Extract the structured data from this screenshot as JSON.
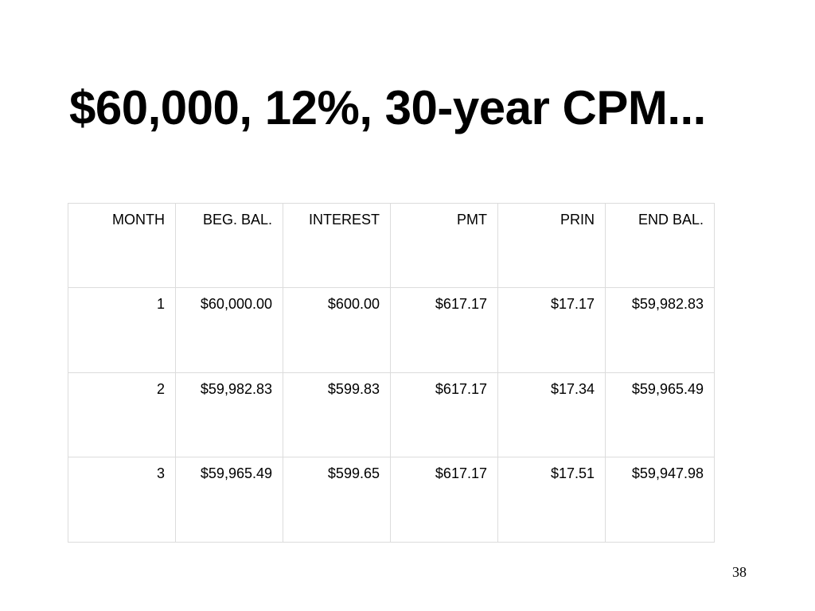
{
  "slide": {
    "title": "$60,000, 12%, 30-year CPM...",
    "page_number": "38"
  },
  "table": {
    "headers": [
      "MONTH",
      "BEG. BAL.",
      "INTEREST",
      "PMT",
      "PRIN",
      "END BAL."
    ],
    "rows": [
      [
        "1",
        "$60,000.00",
        "$600.00",
        "$617.17",
        "$17.17",
        "$59,982.83"
      ],
      [
        "2",
        "$59,982.83",
        "$599.83",
        "$617.17",
        "$17.34",
        "$59,965.49"
      ],
      [
        "3",
        "$59,965.49",
        "$599.65",
        "$617.17",
        "$17.51",
        "$59,947.98"
      ]
    ]
  }
}
